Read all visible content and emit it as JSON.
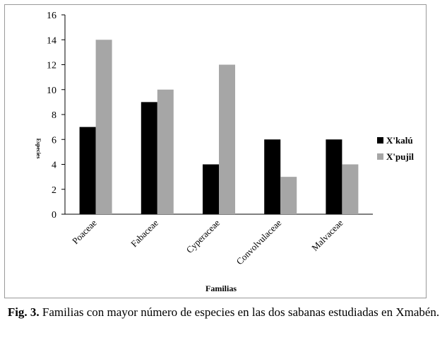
{
  "chart_data": {
    "type": "bar",
    "categories": [
      "Poaceae",
      "Fabaceae",
      "Cyperaceae",
      "Convolvulaceae",
      "Malvaceae"
    ],
    "series": [
      {
        "name": "X'kalú",
        "values": [
          7,
          9,
          4,
          6,
          6
        ],
        "color": "#000000"
      },
      {
        "name": "X'pujil",
        "values": [
          14,
          10,
          12,
          3,
          4
        ],
        "color": "#a6a6a6"
      }
    ],
    "xlabel": "Familias",
    "ylabel": "Especies",
    "ylim": [
      0,
      16
    ],
    "yticks": [
      0,
      2,
      4,
      6,
      8,
      10,
      12,
      14,
      16
    ],
    "grid": false,
    "legend_position": "right"
  },
  "caption": {
    "label": "Fig. 3.",
    "text": " Familias con mayor número de especies en las dos sabanas estudiadas en Xmabén."
  }
}
